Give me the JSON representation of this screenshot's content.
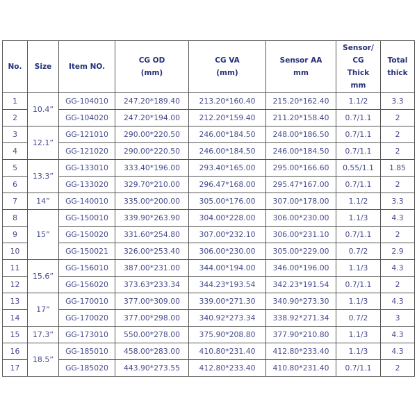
{
  "headers": {
    "no": "No.",
    "size": "Size",
    "item": "Item NO.",
    "cg_od": [
      "CG OD",
      "(mm)"
    ],
    "cg_va": [
      "CG VA",
      "(mm)"
    ],
    "sensor_aa": [
      "Sensor AA",
      "mm"
    ],
    "sensor_cg": [
      "Sensor/",
      "CG",
      "Thick",
      "mm"
    ],
    "total": [
      "Total",
      "thick"
    ]
  },
  "size_groups": [
    {
      "size": "10.4”",
      "rows": 2
    },
    {
      "size": "12.1”",
      "rows": 2
    },
    {
      "size": "13.3”",
      "rows": 2
    },
    {
      "size": "14”",
      "rows": 1
    },
    {
      "size": "15”",
      "rows": 3
    },
    {
      "size": "15.6”",
      "rows": 2
    },
    {
      "size": "17”",
      "rows": 2
    },
    {
      "size": "17.3”",
      "rows": 1
    },
    {
      "size": "18.5”",
      "rows": 2
    }
  ],
  "rows": [
    {
      "no": "1",
      "item": "GG-104010",
      "cg_od": "247.20*189.40",
      "cg_va": "213.20*160.40",
      "sensor_aa": "215.20*162.40",
      "sensor_cg": "1.1/2",
      "total": "3.3"
    },
    {
      "no": "2",
      "item": "GG-104020",
      "cg_od": "247.20*194.00",
      "cg_va": "212.20*159.40",
      "sensor_aa": "211.20*158.40",
      "sensor_cg": "0.7/1.1",
      "total": "2"
    },
    {
      "no": "3",
      "item": "GG-121010",
      "cg_od": "290.00*220.50",
      "cg_va": "246.00*184.50",
      "sensor_aa": "248.00*186.50",
      "sensor_cg": "0.7/1.1",
      "total": "2"
    },
    {
      "no": "4",
      "item": "GG-121020",
      "cg_od": "290.00*220.50",
      "cg_va": "246.00*184.50",
      "sensor_aa": "246.00*184.50",
      "sensor_cg": "0.7/1.1",
      "total": "2"
    },
    {
      "no": "5",
      "item": "GG-133010",
      "cg_od": "333.40*196.00",
      "cg_va": "293.40*165.00",
      "sensor_aa": "295.00*166.60",
      "sensor_cg": "0.55/1.1",
      "total": "1.85"
    },
    {
      "no": "6",
      "item": "GG-133020",
      "cg_od": "329.70*210.00",
      "cg_va": "296.47*168.00",
      "sensor_aa": "295.47*167.00",
      "sensor_cg": "0.7/1.1",
      "total": "2"
    },
    {
      "no": "7",
      "item": "GG-140010",
      "cg_od": "335.00*200.00",
      "cg_va": "305.00*176.00",
      "sensor_aa": "307.00*178.00",
      "sensor_cg": "1.1/2",
      "total": "3.3"
    },
    {
      "no": "8",
      "item": "GG-150010",
      "cg_od": "339.90*263.90",
      "cg_va": "304.00*228.00",
      "sensor_aa": "306.00*230.00",
      "sensor_cg": "1.1/3",
      "total": "4.3"
    },
    {
      "no": "9",
      "item": "GG-150020",
      "cg_od": "331.60*254.80",
      "cg_va": "307.00*232.10",
      "sensor_aa": "306.00*231.10",
      "sensor_cg": "0.7/1.1",
      "total": "2"
    },
    {
      "no": "10",
      "item": "GG-150021",
      "cg_od": "326.00*253.40",
      "cg_va": "306.00*230.00",
      "sensor_aa": "305.00*229.00",
      "sensor_cg": "0.7/2",
      "total": "2.9"
    },
    {
      "no": "11",
      "item": "GG-156010",
      "cg_od": "387.00*231.00",
      "cg_va": "344.00*194.00",
      "sensor_aa": "346.00*196.00",
      "sensor_cg": "1.1/3",
      "total": "4.3"
    },
    {
      "no": "12",
      "item": "GG-156020",
      "cg_od": "373.63*233.34",
      "cg_va": "344.23*193.54",
      "sensor_aa": "342.23*191.54",
      "sensor_cg": "0.7/1.1",
      "total": "2"
    },
    {
      "no": "13",
      "item": "GG-170010",
      "cg_od": "377.00*309.00",
      "cg_va": "339.00*271.30",
      "sensor_aa": "340.90*273.30",
      "sensor_cg": "1.1/3",
      "total": "4.3"
    },
    {
      "no": "14",
      "item": "GG-170020",
      "cg_od": "377.00*298.00",
      "cg_va": "340.92*273.34",
      "sensor_aa": "338.92*271.34",
      "sensor_cg": "0.7/2",
      "total": "3"
    },
    {
      "no": "15",
      "item": "GG-173010",
      "cg_od": "550.00*278.00",
      "cg_va": "375.90*208.80",
      "sensor_aa": "377.90*210.80",
      "sensor_cg": "1.1/3",
      "total": "4.3"
    },
    {
      "no": "16",
      "item": "GG-185010",
      "cg_od": "458.00*283.00",
      "cg_va": "410.80*231.40",
      "sensor_aa": "412.80*233.40",
      "sensor_cg": "1.1/3",
      "total": "4.3"
    },
    {
      "no": "17",
      "item": "GG-185020",
      "cg_od": "443.90*273.55",
      "cg_va": "412.80*233.40",
      "sensor_aa": "410.80*231.40",
      "sensor_cg": "0.7/1.1",
      "total": "2"
    }
  ]
}
